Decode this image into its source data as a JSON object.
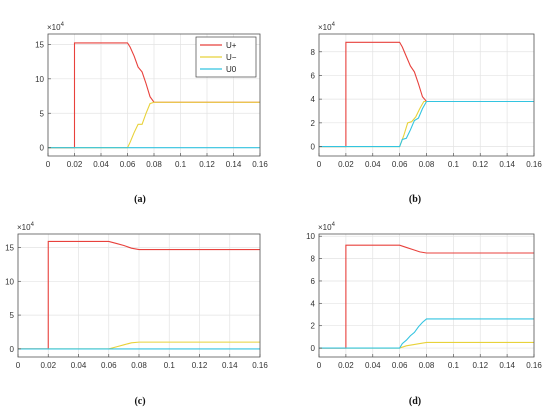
{
  "chart_data": [
    {
      "type": "line",
      "subtitle": "(a)",
      "exponent_label": "×10",
      "exponent_power": "4",
      "xlim": [
        0,
        0.16
      ],
      "ylim": [
        -1.2,
        16.5
      ],
      "xticks": [
        0,
        0.02,
        0.04,
        0.06,
        0.08,
        0.1,
        0.12,
        0.14,
        0.16
      ],
      "xtick_labels": [
        "0",
        "0.02",
        "0.04",
        "0.06",
        "0.08",
        "0.1",
        "0.12",
        "0.14",
        "0.16"
      ],
      "yticks": [
        0,
        5,
        10,
        15
      ],
      "ytick_labels": [
        "0",
        "5",
        "10",
        "15"
      ],
      "grid": true,
      "legend": {
        "position": "top-right",
        "entries": [
          "U+",
          "U−",
          "U0"
        ]
      },
      "series": [
        {
          "name": "U+",
          "color": "#e8413c",
          "x": [
            0,
            0.02,
            0.02,
            0.06,
            0.062,
            0.065,
            0.068,
            0.071,
            0.074,
            0.077,
            0.08,
            0.16
          ],
          "y": [
            0,
            0,
            15.2,
            15.2,
            14.6,
            13.3,
            11.7,
            11.0,
            9.3,
            7.4,
            6.6,
            6.6
          ]
        },
        {
          "name": "U−",
          "color": "#e8d23a",
          "x": [
            0,
            0.06,
            0.062,
            0.065,
            0.068,
            0.071,
            0.074,
            0.077,
            0.08,
            0.16
          ],
          "y": [
            0,
            0,
            0.8,
            2.2,
            3.4,
            3.4,
            5.0,
            6.4,
            6.6,
            6.6
          ]
        },
        {
          "name": "U0",
          "color": "#33c4e0",
          "x": [
            0,
            0.16
          ],
          "y": [
            0,
            0
          ]
        }
      ]
    },
    {
      "type": "line",
      "subtitle": "(b)",
      "exponent_label": "×10",
      "exponent_power": "4",
      "xlim": [
        0,
        0.16
      ],
      "ylim": [
        -0.8,
        9.5
      ],
      "xticks": [
        0,
        0.02,
        0.04,
        0.06,
        0.08,
        0.1,
        0.12,
        0.14,
        0.16
      ],
      "xtick_labels": [
        "0",
        "0.02",
        "0.04",
        "0.06",
        "0.08",
        "0.1",
        "0.12",
        "0.14",
        "0.16"
      ],
      "yticks": [
        0,
        2,
        4,
        6,
        8
      ],
      "ytick_labels": [
        "0",
        "2",
        "4",
        "6",
        "8"
      ],
      "grid": true,
      "series": [
        {
          "name": "U+",
          "color": "#e8413c",
          "x": [
            0,
            0.02,
            0.02,
            0.06,
            0.062,
            0.065,
            0.068,
            0.071,
            0.074,
            0.077,
            0.08,
            0.16
          ],
          "y": [
            0,
            0,
            8.8,
            8.8,
            8.4,
            7.6,
            6.8,
            6.3,
            5.3,
            4.2,
            3.8,
            3.8
          ]
        },
        {
          "name": "U−",
          "color": "#e8d23a",
          "x": [
            0,
            0.06,
            0.063,
            0.066,
            0.069,
            0.072,
            0.075,
            0.078,
            0.08,
            0.16
          ],
          "y": [
            0,
            0,
            0.9,
            2.0,
            2.1,
            2.5,
            3.2,
            3.8,
            3.8,
            3.8
          ]
        },
        {
          "name": "U0",
          "color": "#33c4e0",
          "x": [
            0,
            0.06,
            0.062,
            0.065,
            0.068,
            0.071,
            0.074,
            0.077,
            0.08,
            0.16
          ],
          "y": [
            0,
            0,
            0.6,
            0.7,
            1.4,
            2.2,
            2.4,
            3.2,
            3.8,
            3.8
          ]
        }
      ]
    },
    {
      "type": "line",
      "subtitle": "(c)",
      "exponent_label": "×10",
      "exponent_power": "4",
      "xlim": [
        0,
        0.16
      ],
      "ylim": [
        -1.2,
        17
      ],
      "xticks": [
        0,
        0.02,
        0.04,
        0.06,
        0.08,
        0.1,
        0.12,
        0.14,
        0.16
      ],
      "xtick_labels": [
        "0",
        "0.02",
        "0.04",
        "0.06",
        "0.08",
        "0.1",
        "0.12",
        "0.14",
        "0.16"
      ],
      "yticks": [
        0,
        5,
        10,
        15
      ],
      "ytick_labels": [
        "0",
        "5",
        "10",
        "15"
      ],
      "grid": true,
      "series": [
        {
          "name": "U+",
          "color": "#e8413c",
          "x": [
            0,
            0.02,
            0.02,
            0.06,
            0.065,
            0.07,
            0.075,
            0.08,
            0.16
          ],
          "y": [
            0,
            0,
            15.9,
            15.9,
            15.6,
            15.3,
            14.9,
            14.7,
            14.7
          ]
        },
        {
          "name": "U−",
          "color": "#e8d23a",
          "x": [
            0,
            0.06,
            0.065,
            0.07,
            0.075,
            0.08,
            0.16
          ],
          "y": [
            0,
            0,
            0.3,
            0.6,
            0.9,
            1.0,
            1.0
          ]
        },
        {
          "name": "U0",
          "color": "#33c4e0",
          "x": [
            0,
            0.16
          ],
          "y": [
            0,
            0
          ]
        }
      ]
    },
    {
      "type": "line",
      "subtitle": "(d)",
      "exponent_label": "×10",
      "exponent_power": "4",
      "xlim": [
        0,
        0.16
      ],
      "ylim": [
        -0.8,
        10.2
      ],
      "xticks": [
        0,
        0.02,
        0.04,
        0.06,
        0.08,
        0.1,
        0.12,
        0.14,
        0.16
      ],
      "xtick_labels": [
        "0",
        "0.02",
        "0.04",
        "0.06",
        "0.08",
        "0.1",
        "0.12",
        "0.14",
        "0.16"
      ],
      "yticks": [
        0,
        2,
        4,
        6,
        8,
        10
      ],
      "ytick_labels": [
        "0",
        "2",
        "4",
        "6",
        "8",
        "10"
      ],
      "grid": true,
      "series": [
        {
          "name": "U+",
          "color": "#e8413c",
          "x": [
            0,
            0.02,
            0.02,
            0.06,
            0.065,
            0.07,
            0.075,
            0.08,
            0.16
          ],
          "y": [
            0,
            0,
            9.2,
            9.2,
            9.0,
            8.8,
            8.6,
            8.5,
            8.5
          ]
        },
        {
          "name": "U−",
          "color": "#e8d23a",
          "x": [
            0,
            0.06,
            0.065,
            0.07,
            0.075,
            0.08,
            0.16
          ],
          "y": [
            0,
            0,
            0.2,
            0.3,
            0.4,
            0.5,
            0.5
          ]
        },
        {
          "name": "U0",
          "color": "#33c4e0",
          "x": [
            0,
            0.06,
            0.062,
            0.065,
            0.068,
            0.071,
            0.074,
            0.077,
            0.08,
            0.16
          ],
          "y": [
            0,
            0,
            0.4,
            0.7,
            1.1,
            1.4,
            1.9,
            2.3,
            2.6,
            2.6
          ]
        }
      ]
    }
  ]
}
